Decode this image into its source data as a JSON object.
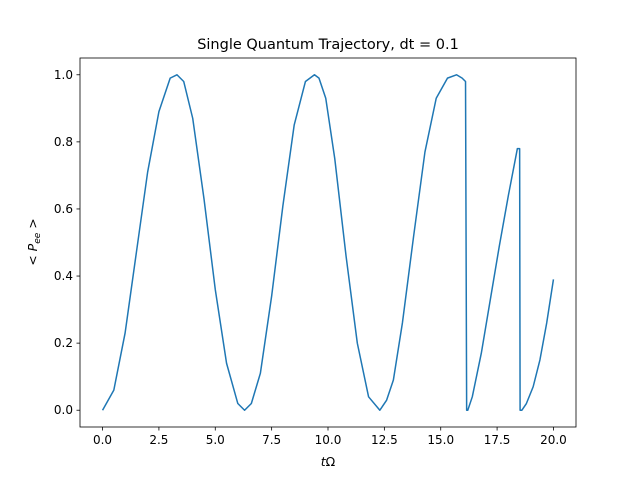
{
  "chart_data": {
    "type": "line",
    "title": "Single Quantum Trajectory, dt = 0.1",
    "xlabel": "tΩ",
    "ylabel": "< P_ee >",
    "xlim": [
      -1.0,
      21.0
    ],
    "ylim": [
      -0.05,
      1.05
    ],
    "xticks": [
      0.0,
      2.5,
      5.0,
      7.5,
      10.0,
      12.5,
      15.0,
      17.5,
      20.0
    ],
    "xtick_labels": [
      "0.0",
      "2.5",
      "5.0",
      "7.5",
      "10.0",
      "12.5",
      "15.0",
      "17.5",
      "20.0"
    ],
    "yticks": [
      0.0,
      0.2,
      0.4,
      0.6,
      0.8,
      1.0
    ],
    "ytick_labels": [
      "0.0",
      "0.2",
      "0.4",
      "0.6",
      "0.8",
      "1.0"
    ],
    "grid": false,
    "line_color": "#1f77b4",
    "series": [
      {
        "x": [
          0.0,
          0.5,
          1.0,
          1.5,
          2.0,
          2.5,
          3.0,
          3.3,
          3.6,
          4.0,
          4.5,
          5.0,
          5.5,
          6.0,
          6.3,
          6.6,
          7.0,
          7.5,
          8.0,
          8.5,
          9.0,
          9.4,
          9.6,
          9.9,
          10.3,
          10.8,
          11.3,
          11.8,
          12.3,
          12.6,
          12.9,
          13.3,
          13.8,
          14.3,
          14.8,
          15.3,
          15.7,
          15.95,
          16.1,
          16.15,
          16.2,
          16.4,
          16.8,
          17.2,
          17.6,
          18.0,
          18.4,
          18.5,
          18.52,
          18.6,
          18.8,
          19.1,
          19.4,
          19.7,
          20.0
        ],
        "y": [
          0.0,
          0.06,
          0.23,
          0.47,
          0.71,
          0.89,
          0.99,
          1.0,
          0.98,
          0.87,
          0.63,
          0.36,
          0.14,
          0.02,
          0.0,
          0.02,
          0.11,
          0.34,
          0.61,
          0.85,
          0.98,
          1.0,
          0.99,
          0.93,
          0.75,
          0.46,
          0.2,
          0.04,
          0.0,
          0.03,
          0.09,
          0.26,
          0.52,
          0.77,
          0.93,
          0.99,
          1.0,
          0.99,
          0.98,
          0.0,
          0.0,
          0.04,
          0.17,
          0.33,
          0.49,
          0.64,
          0.78,
          0.78,
          0.0,
          0.0,
          0.02,
          0.07,
          0.15,
          0.26,
          0.39
        ]
      }
    ]
  }
}
